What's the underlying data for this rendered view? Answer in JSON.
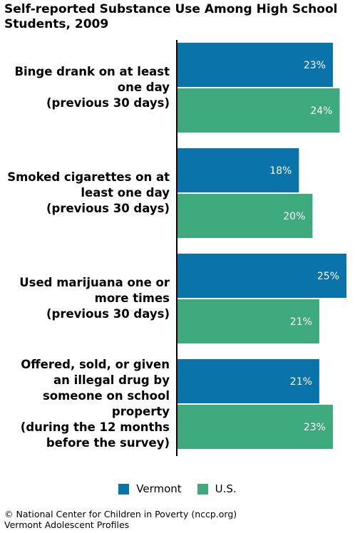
{
  "chart_data": {
    "type": "bar",
    "orientation": "horizontal",
    "title": "Self-reported Substance Use Among High School Students, 2009",
    "categories": [
      [
        "Binge drank on at least",
        "one day",
        "(previous 30 days)"
      ],
      [
        "Smoked cigarettes on at",
        "least one day",
        "(previous 30 days)"
      ],
      [
        "Used marijuana one or",
        "more times",
        "(previous 30 days)"
      ],
      [
        "Offered, sold, or given",
        "an illegal drug by",
        "someone on school",
        "property",
        "(during the 12 months",
        "before the survey)"
      ]
    ],
    "series": [
      {
        "name": "Vermont",
        "color": "#0a73a9",
        "values": [
          23,
          18,
          25,
          21
        ],
        "labels": [
          "23%",
          "18%",
          "25%",
          "21%"
        ]
      },
      {
        "name": "U.S.",
        "color": "#3fa97e",
        "values": [
          24,
          20,
          21,
          23
        ],
        "labels": [
          "24%",
          "20%",
          "21%",
          "23%"
        ]
      }
    ],
    "xlim": [
      0,
      25
    ],
    "legend_position": "bottom",
    "grid": false
  },
  "footer": {
    "line1": "© National Center for Children in Poverty (nccp.org)",
    "line2": "Vermont Adolescent Profiles"
  }
}
